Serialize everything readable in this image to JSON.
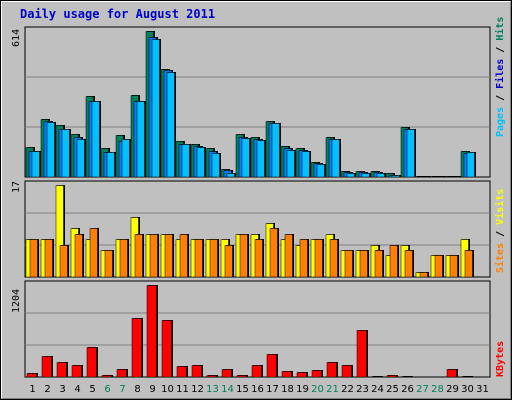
{
  "title": "Daily usage for August 2011",
  "colors": {
    "background": "#c0c0c0",
    "frame_light": "#ffffff",
    "frame_dark": "#808080",
    "grid": "#808080",
    "hits": "#00805c",
    "files": "#0080ff",
    "pages": "#00c0ff",
    "visits": "#ffff00",
    "sites": "#ff8000",
    "kbytes": "#ff0000",
    "weekday_label": "#000000",
    "weekend_label": "#00805c"
  },
  "side_labels": {
    "top": {
      "pages": "Pages",
      "files": "Files",
      "hits": "Hits",
      "sep": " / "
    },
    "middle": {
      "sites": "Sites",
      "visits": "Visits",
      "sep": " / "
    },
    "bottom": {
      "kbytes": "KBytes"
    }
  },
  "chart_data": [
    {
      "type": "bar",
      "panel": "hits-files-pages",
      "y_max_label": "614",
      "ylim": [
        0,
        614
      ],
      "categories": [
        "1",
        "2",
        "3",
        "4",
        "5",
        "6",
        "7",
        "8",
        "9",
        "10",
        "11",
        "12",
        "13",
        "14",
        "15",
        "16",
        "17",
        "18",
        "19",
        "20",
        "21",
        "22",
        "23",
        "24",
        "25",
        "26",
        "27",
        "28",
        "29",
        "30",
        "31"
      ],
      "weekend_days": [
        "6",
        "7",
        "13",
        "14",
        "20",
        "21",
        "27",
        "28"
      ],
      "series": [
        {
          "name": "Hits",
          "values": [
            125,
            245,
            220,
            180,
            340,
            120,
            175,
            345,
            614,
            455,
            150,
            140,
            120,
            35,
            180,
            170,
            235,
            130,
            120,
            65,
            170,
            25,
            25,
            25,
            15,
            210,
            5,
            5,
            5,
            110,
            0
          ]
        },
        {
          "name": "Files",
          "values": [
            110,
            235,
            200,
            170,
            320,
            105,
            150,
            320,
            590,
            450,
            140,
            130,
            110,
            30,
            170,
            160,
            225,
            120,
            115,
            60,
            160,
            20,
            20,
            20,
            10,
            200,
            5,
            5,
            5,
            100,
            0
          ]
        },
        {
          "name": "Pages",
          "values": [
            110,
            230,
            200,
            160,
            320,
            105,
            160,
            320,
            580,
            440,
            140,
            125,
            100,
            15,
            165,
            155,
            225,
            115,
            110,
            55,
            160,
            15,
            15,
            15,
            10,
            200,
            3,
            3,
            3,
            105,
            0
          ]
        }
      ]
    },
    {
      "type": "bar",
      "panel": "visits-sites",
      "y_max_label": "17",
      "ylim": [
        0,
        17
      ],
      "categories": [
        "1",
        "2",
        "3",
        "4",
        "5",
        "6",
        "7",
        "8",
        "9",
        "10",
        "11",
        "12",
        "13",
        "14",
        "15",
        "16",
        "17",
        "18",
        "19",
        "20",
        "21",
        "22",
        "23",
        "24",
        "25",
        "26",
        "27",
        "28",
        "29",
        "30",
        "31"
      ],
      "series": [
        {
          "name": "Visits",
          "values": [
            7,
            7,
            17,
            9,
            7,
            5,
            7,
            11,
            8,
            8,
            7,
            7,
            7,
            7,
            8,
            8,
            10,
            7,
            6,
            7,
            8,
            5,
            5,
            6,
            4,
            6,
            1,
            4,
            4,
            7,
            0
          ]
        },
        {
          "name": "Sites",
          "values": [
            7,
            7,
            6,
            8,
            9,
            5,
            7,
            8,
            8,
            8,
            8,
            7,
            7,
            6,
            8,
            7,
            9,
            8,
            7,
            7,
            7,
            5,
            5,
            5,
            6,
            5,
            1,
            4,
            4,
            5,
            0
          ]
        }
      ]
    },
    {
      "type": "bar",
      "panel": "kbytes",
      "y_max_label": "1204",
      "ylim": [
        0,
        1204
      ],
      "categories": [
        "1",
        "2",
        "3",
        "4",
        "5",
        "6",
        "7",
        "8",
        "9",
        "10",
        "11",
        "12",
        "13",
        "14",
        "15",
        "16",
        "17",
        "18",
        "19",
        "20",
        "21",
        "22",
        "23",
        "24",
        "25",
        "26",
        "27",
        "28",
        "29",
        "30",
        "31"
      ],
      "series": [
        {
          "name": "KBytes",
          "values": [
            50,
            280,
            200,
            160,
            390,
            30,
            110,
            770,
            1204,
            750,
            150,
            155,
            20,
            110,
            30,
            160,
            300,
            80,
            70,
            90,
            190,
            160,
            620,
            10,
            30,
            10,
            5,
            5,
            100,
            15,
            0
          ]
        }
      ]
    }
  ]
}
